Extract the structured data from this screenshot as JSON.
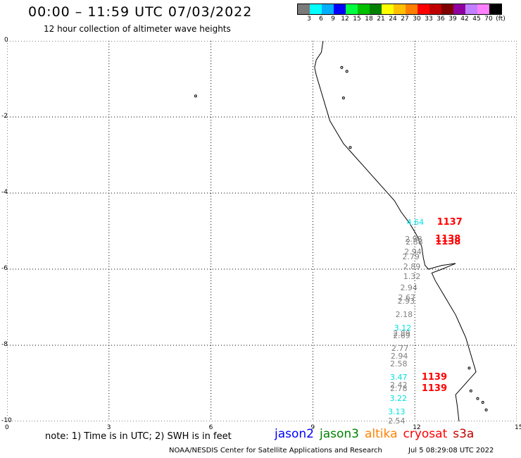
{
  "header": {
    "title": "00:00 – 11:59 UTC 07/03/2022",
    "subtitle": "12 hour collection of altimeter wave heights"
  },
  "colorbar": {
    "colors": [
      "#7a7a7a",
      "#00ffff",
      "#00b0ff",
      "#0000ff",
      "#00ff40",
      "#00c000",
      "#008000",
      "#ffff00",
      "#ffc000",
      "#ff8000",
      "#ff0000",
      "#c00000",
      "#800000",
      "#9000a0",
      "#c080ff",
      "#ff80ff",
      "#000000"
    ],
    "labels": [
      "3",
      "6",
      "9",
      "12",
      "15",
      "18",
      "21",
      "24",
      "27",
      "30",
      "33",
      "36",
      "39",
      "42",
      "45",
      "70",
      "(ft)"
    ]
  },
  "axes": {
    "x_ticks": [
      "0",
      "3",
      "6",
      "9",
      "12",
      "15"
    ],
    "y_ticks": [
      "0",
      "2",
      "4",
      "6",
      "8",
      "10"
    ],
    "y_tick_prefix": "-"
  },
  "map": {
    "grid_color": "#000000",
    "coastline_color": "#000000"
  },
  "wave_heights": [
    {
      "text": "4.64",
      "color": "#00e0e0",
      "x": 12.05,
      "y": 4.78
    },
    {
      "text": "2.98",
      "color": "#808080",
      "x": 12.0,
      "y": 5.22
    },
    {
      "text": "2.88",
      "color": "#808080",
      "x": 12.02,
      "y": 5.3
    },
    {
      "text": "2.94",
      "color": "#808080",
      "x": 11.98,
      "y": 5.55
    },
    {
      "text": "2.79",
      "color": "#808080",
      "x": 11.92,
      "y": 5.68
    },
    {
      "text": "2.89",
      "color": "#808080",
      "x": 11.95,
      "y": 5.95
    },
    {
      "text": "1.32",
      "color": "#808080",
      "x": 11.95,
      "y": 6.2
    },
    {
      "text": "2.94",
      "color": "#808080",
      "x": 11.86,
      "y": 6.5
    },
    {
      "text": "2.67",
      "color": "#808080",
      "x": 11.8,
      "y": 6.75
    },
    {
      "text": "2.93",
      "color": "#808080",
      "x": 11.78,
      "y": 6.85
    },
    {
      "text": "2.18",
      "color": "#808080",
      "x": 11.72,
      "y": 7.2
    },
    {
      "text": "3.12",
      "color": "#00e0e0",
      "x": 11.68,
      "y": 7.55
    },
    {
      "text": "2.89",
      "color": "#808080",
      "x": 11.65,
      "y": 7.7
    },
    {
      "text": "2.69",
      "color": "#808080",
      "x": 11.65,
      "y": 7.76
    },
    {
      "text": "2.77",
      "color": "#808080",
      "x": 11.6,
      "y": 8.1
    },
    {
      "text": "2.94",
      "color": "#808080",
      "x": 11.58,
      "y": 8.3
    },
    {
      "text": "2.58",
      "color": "#808080",
      "x": 11.56,
      "y": 8.5
    },
    {
      "text": "3.47",
      "color": "#00e0e0",
      "x": 11.56,
      "y": 8.85
    },
    {
      "text": "2.42",
      "color": "#808080",
      "x": 11.56,
      "y": 9.05
    },
    {
      "text": "2.78",
      "color": "#808080",
      "x": 11.56,
      "y": 9.15
    },
    {
      "text": "3.22",
      "color": "#00e0e0",
      "x": 11.55,
      "y": 9.4
    },
    {
      "text": "3.13",
      "color": "#00e0e0",
      "x": 11.5,
      "y": 9.75
    },
    {
      "text": "2.54",
      "color": "#808080",
      "x": 11.5,
      "y": 10.0
    }
  ],
  "cycle_labels": [
    {
      "text": "1137",
      "color": "#ff0000",
      "x": 12.65,
      "y": 4.78
    },
    {
      "text": "1138",
      "color": "#ff0000",
      "x": 12.6,
      "y": 5.22
    },
    {
      "text": "1138",
      "color": "#ff0000",
      "x": 12.6,
      "y": 5.3
    },
    {
      "text": "1139",
      "color": "#ff0000",
      "x": 12.2,
      "y": 8.85
    },
    {
      "text": "1139",
      "color": "#ff0000",
      "x": 12.2,
      "y": 9.15
    }
  ],
  "footer": {
    "note": "note:  1) Time is in UTC;  2) SWH is in feet",
    "legend": [
      {
        "name": "jason2",
        "color": "#0000ff"
      },
      {
        "name": "jason3",
        "color": "#008000"
      },
      {
        "name": "altika",
        "color": "#ff8000"
      },
      {
        "name": "cryosat",
        "color": "#ff0000"
      },
      {
        "name": "s3a",
        "color": "#c00000"
      }
    ],
    "credit": "NOAA/NESDIS Center for Satellite Applications and Research",
    "timestamp": "Jul  5 08:29:08 UTC 2022"
  }
}
